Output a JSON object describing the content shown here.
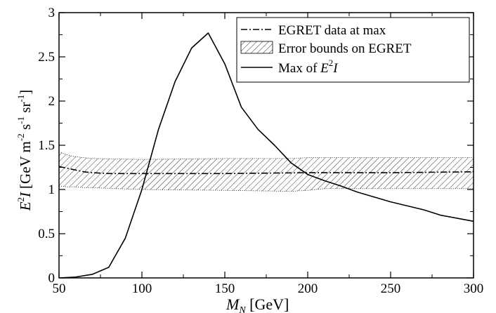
{
  "chart_data": {
    "type": "line",
    "xlabel": {
      "symbol": "M",
      "subscript": "N",
      "unit": " [GeV]"
    },
    "ylabel": {
      "symbol_base": "E",
      "symbol_sup": "2",
      "symbol_tail": "I",
      "unit_text": "[GeV m",
      "unit_sup1": "-2",
      "unit_mid1": " s",
      "unit_sup2": "-1",
      "unit_mid2": " sr",
      "unit_sup3": "-1",
      "unit_close": "]"
    },
    "xlim": [
      50,
      300
    ],
    "ylim": [
      0,
      3
    ],
    "x_ticks": [
      "50",
      "100",
      "150",
      "200",
      "250",
      "300"
    ],
    "y_ticks": [
      "0",
      "0.5",
      "1",
      "1.5",
      "2",
      "2.5",
      "3"
    ],
    "grid": false,
    "legend_position": "top-right",
    "legend": [
      {
        "label": "EGRET data at max",
        "style": "dash-dot"
      },
      {
        "label": "Error bounds on EGRET",
        "style": "hatched"
      },
      {
        "label_text": "Max of ",
        "label_base": "E",
        "label_sup": "2",
        "label_tail": "I",
        "style": "solid"
      }
    ],
    "series": [
      {
        "style": "solid",
        "x": [
          50,
          60,
          70,
          80,
          90,
          100,
          110,
          120,
          130,
          140,
          150,
          160,
          170,
          180,
          190,
          200,
          210,
          220,
          230,
          250,
          270,
          280,
          300
        ],
        "y": [
          0.0,
          0.01,
          0.04,
          0.12,
          0.45,
          1.0,
          1.68,
          2.22,
          2.6,
          2.77,
          2.42,
          1.93,
          1.68,
          1.5,
          1.3,
          1.17,
          1.1,
          1.04,
          0.97,
          0.86,
          0.77,
          0.71,
          0.64
        ]
      },
      {
        "style": "dash-dot",
        "x": [
          50,
          55,
          60,
          65,
          70,
          80,
          100,
          150,
          200,
          250,
          300
        ],
        "y": [
          1.26,
          1.24,
          1.22,
          1.2,
          1.19,
          1.18,
          1.18,
          1.18,
          1.19,
          1.19,
          1.2
        ]
      }
    ],
    "band": {
      "style": "hatched",
      "x": [
        50,
        55,
        60,
        65,
        70,
        100,
        150,
        190,
        200,
        210,
        250,
        300
      ],
      "upper": [
        1.43,
        1.39,
        1.37,
        1.36,
        1.35,
        1.34,
        1.35,
        1.35,
        1.36,
        1.36,
        1.36,
        1.36
      ],
      "lower": [
        1.04,
        1.03,
        1.03,
        1.02,
        1.02,
        1.0,
        0.99,
        0.98,
        0.99,
        1.01,
        1.01,
        1.01
      ]
    }
  }
}
